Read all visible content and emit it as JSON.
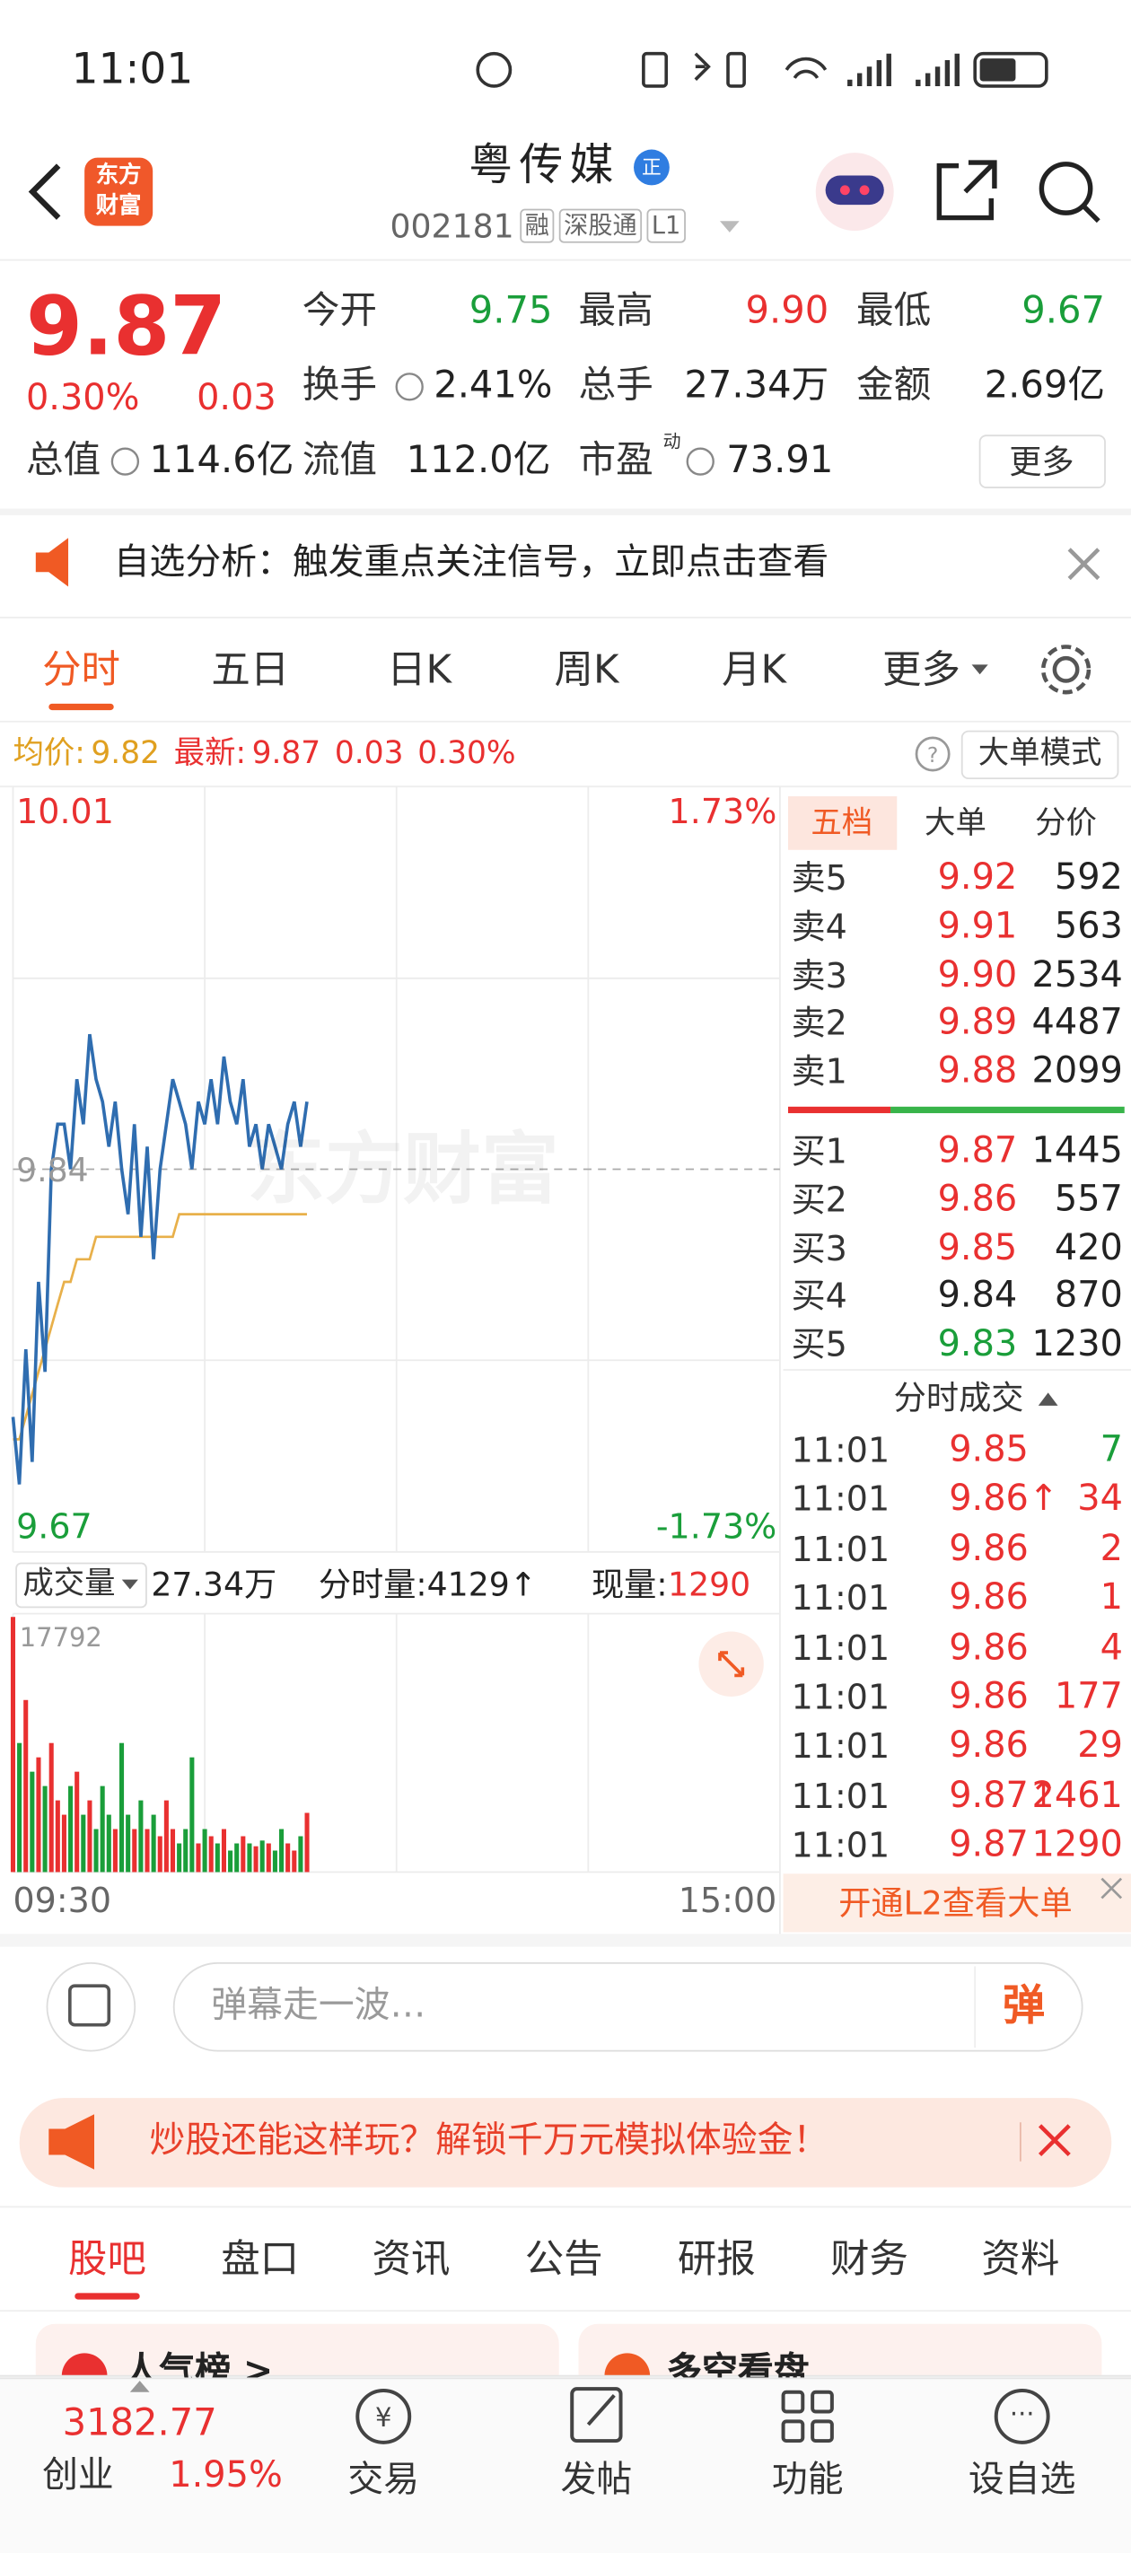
{
  "status_bar": {
    "time": "11:01"
  },
  "header": {
    "logo": [
      "东方",
      "财富"
    ],
    "title": "粤传媒",
    "badge": "正",
    "code": "002181",
    "tags": [
      "融",
      "深股通",
      "L1"
    ]
  },
  "quote": {
    "price": "9.87",
    "change_pct": "0.30%",
    "change": "0.03",
    "stats": [
      {
        "label": "今开",
        "value": "9.75",
        "color": "#1a9e3a"
      },
      {
        "label": "最高",
        "value": "9.90",
        "color": "#e93030"
      },
      {
        "label": "最低",
        "value": "9.67",
        "color": "#1a9e3a"
      },
      {
        "label": "换手",
        "value": "2.41%"
      },
      {
        "label": "总手",
        "value": "27.34万"
      },
      {
        "label": "金额",
        "value": "2.69亿"
      },
      {
        "label": "总值",
        "value": "114.6亿"
      },
      {
        "label": "流值",
        "value": "112.0亿"
      },
      {
        "label": "市盈",
        "sup": "动",
        "value": "73.91"
      }
    ],
    "more": "更多"
  },
  "notice": {
    "text": "自选分析：触发重点关注信号，立即点击查看"
  },
  "tabs": {
    "items": [
      "分时",
      "五日",
      "日K",
      "周K",
      "月K",
      "更多"
    ]
  },
  "info_bar": {
    "avg_label": "均价:",
    "avg": "9.82",
    "latest_label": "最新:",
    "latest": "9.87",
    "change": "0.03",
    "change_pct": "0.30%",
    "mode": "大单模式"
  },
  "chart": {
    "ylim": [
      9.67,
      10.01
    ],
    "prev_close": 9.84,
    "pct_top": "1.73%",
    "pct_bottom": "-1.73%",
    "watermark": "东方财富",
    "price": [
      9.73,
      9.7,
      9.76,
      9.71,
      9.79,
      9.75,
      9.84,
      9.86,
      9.86,
      9.84,
      9.88,
      9.86,
      9.9,
      9.88,
      9.87,
      9.85,
      9.87,
      9.84,
      9.82,
      9.86,
      9.81,
      9.85,
      9.8,
      9.84,
      9.86,
      9.88,
      9.87,
      9.86,
      9.84,
      9.87,
      9.86,
      9.88,
      9.86,
      9.89,
      9.87,
      9.86,
      9.88,
      9.85,
      9.86,
      9.84,
      9.86,
      9.85,
      9.84,
      9.86,
      9.87,
      9.85,
      9.87
    ],
    "avg": [
      9.72,
      9.72,
      9.73,
      9.74,
      9.75,
      9.76,
      9.77,
      9.78,
      9.79,
      9.79,
      9.8,
      9.8,
      9.8,
      9.81,
      9.81,
      9.81,
      9.81,
      9.81,
      9.81,
      9.81,
      9.81,
      9.81,
      9.81,
      9.81,
      9.81,
      9.81,
      9.82,
      9.82,
      9.82,
      9.82,
      9.82,
      9.82,
      9.82,
      9.82,
      9.82,
      9.82,
      9.82,
      9.82,
      9.82,
      9.82,
      9.82,
      9.82,
      9.82,
      9.82,
      9.82,
      9.82,
      9.82
    ],
    "volume_label": "成交量",
    "volume_total": "27.34万",
    "minute_volume": "分时量:4129↑",
    "current_label": "现量:",
    "current_volume": "1290",
    "volume_ylim": [
      0,
      17792
    ],
    "volume": [
      17792,
      9000,
      12000,
      7000,
      8000,
      6000,
      9000,
      5000,
      4000,
      6000,
      7000,
      4000,
      5000,
      3000,
      6000,
      4000,
      3000,
      9000,
      4000,
      3000,
      5000,
      3000,
      4000,
      2500,
      5000,
      3000,
      2000,
      3000,
      8000,
      2000,
      3000,
      2500,
      2000,
      3000,
      1500,
      2000,
      2500,
      2000,
      1800,
      2200,
      2000,
      1500,
      3000,
      2000,
      1500,
      2500,
      4129
    ],
    "x_start": "09:30",
    "x_end": "15:00"
  },
  "order_book": {
    "tabs": [
      "五档",
      "大单",
      "分价"
    ],
    "asks": [
      {
        "label": "卖5",
        "price": "9.92",
        "vol": "592"
      },
      {
        "label": "卖4",
        "price": "9.91",
        "vol": "563"
      },
      {
        "label": "卖3",
        "price": "9.90",
        "vol": "2534"
      },
      {
        "label": "卖2",
        "price": "9.89",
        "vol": "4487"
      },
      {
        "label": "卖1",
        "price": "9.88",
        "vol": "2099"
      }
    ],
    "bids": [
      {
        "label": "买1",
        "price": "9.87",
        "vol": "1445"
      },
      {
        "label": "买2",
        "price": "9.86",
        "vol": "557"
      },
      {
        "label": "买3",
        "price": "9.85",
        "vol": "420"
      },
      {
        "label": "买4",
        "price": "9.84",
        "vol": "870"
      },
      {
        "label": "买5",
        "price": "9.83",
        "vol": "1230"
      }
    ],
    "trades_title": "分时成交",
    "trades": [
      {
        "time": "11:01",
        "price": "9.85",
        "vol": "7",
        "color": "#1a9e3a"
      },
      {
        "time": "11:01",
        "price": "9.86↑",
        "vol": "34",
        "color": "#e93030"
      },
      {
        "time": "11:01",
        "price": "9.86",
        "vol": "2",
        "color": "#e93030"
      },
      {
        "time": "11:01",
        "price": "9.86",
        "vol": "1",
        "color": "#e93030"
      },
      {
        "time": "11:01",
        "price": "9.86",
        "vol": "4",
        "color": "#e93030"
      },
      {
        "time": "11:01",
        "price": "9.86",
        "vol": "177",
        "color": "#e93030"
      },
      {
        "time": "11:01",
        "price": "9.86",
        "vol": "29",
        "color": "#e93030"
      },
      {
        "time": "11:01",
        "price": "9.87↑",
        "vol": "2461",
        "color": "#e93030"
      },
      {
        "time": "11:01",
        "price": "9.87",
        "vol": "1290",
        "color": "#e93030"
      }
    ],
    "l2": "开通L2查看大单"
  },
  "danmu": {
    "placeholder": "弹幕走一波…",
    "button": "弹"
  },
  "promo": {
    "text": "炒股还能这样玩？解锁千万元模拟体验金！"
  },
  "bottom_tabs": {
    "items": [
      "股吧",
      "盘口",
      "资讯",
      "公告",
      "研报",
      "财务",
      "资料"
    ]
  },
  "cards": [
    "人气榜 >",
    "多空看盘"
  ],
  "nav": {
    "index_value": "3182.77",
    "index_name": "创业",
    "index_pct": "1.95%",
    "items": [
      "交易",
      "发帖",
      "功能",
      "设自选"
    ]
  }
}
